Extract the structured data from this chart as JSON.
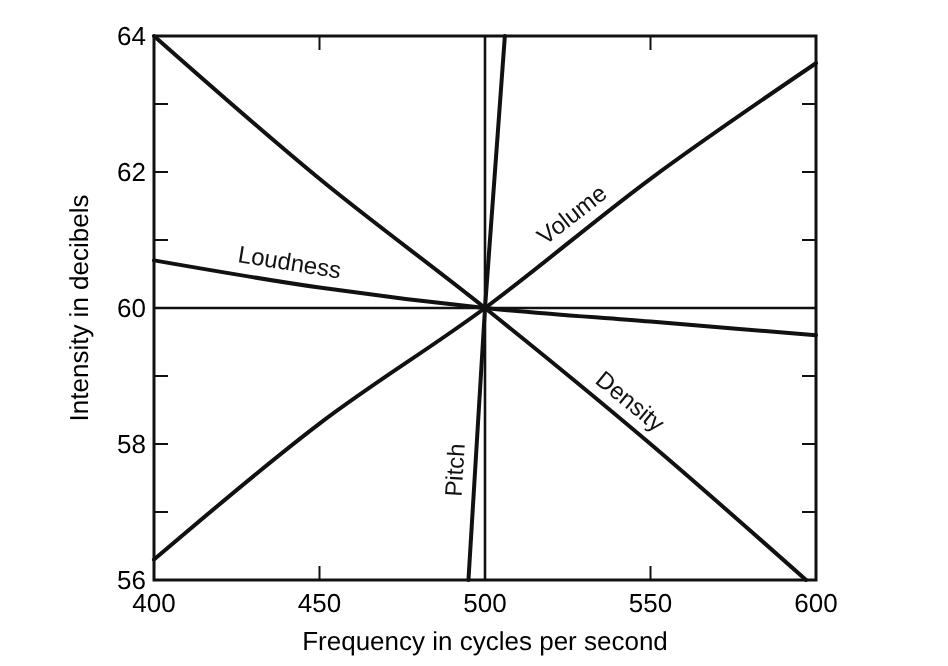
{
  "chart_data": {
    "type": "line",
    "xlabel": "Frequency in cycles per second",
    "ylabel": "Intensity in decibels",
    "xlim": [
      400,
      600
    ],
    "ylim": [
      56,
      64
    ],
    "xticks": [
      400,
      450,
      500,
      550,
      600
    ],
    "yticks": [
      56,
      {
        "value": 57,
        "label": null
      },
      58,
      {
        "value": 59,
        "label": null
      },
      60,
      {
        "value": 61,
        "label": null
      },
      62,
      {
        "value": 63,
        "label": null
      },
      64
    ],
    "grid": false,
    "marker": "none",
    "line_style": "solid",
    "ref_lines": [
      {
        "axis": "x",
        "value": 500,
        "color": "#111111"
      },
      {
        "axis": "y",
        "value": 60,
        "color": "#111111"
      }
    ],
    "series": [
      {
        "name": "Loudness",
        "color": "#111111",
        "x": [
          400,
          450,
          500,
          550,
          600
        ],
        "values": [
          60.7,
          60.3,
          60,
          59.8,
          59.6
        ]
      },
      {
        "name": "Volume",
        "color": "#111111",
        "x": [
          400,
          450,
          500,
          550,
          600
        ],
        "values": [
          56.3,
          58.3,
          60,
          61.9,
          63.6
        ]
      },
      {
        "name": "Density",
        "color": "#111111",
        "x": [
          400,
          450,
          500,
          550,
          597
        ],
        "values": [
          64,
          61.9,
          60,
          58,
          56
        ]
      },
      {
        "name": "Pitch",
        "color": "#111111",
        "x": [
          495,
          500,
          506
        ],
        "values": [
          56,
          60,
          64
        ]
      }
    ]
  }
}
